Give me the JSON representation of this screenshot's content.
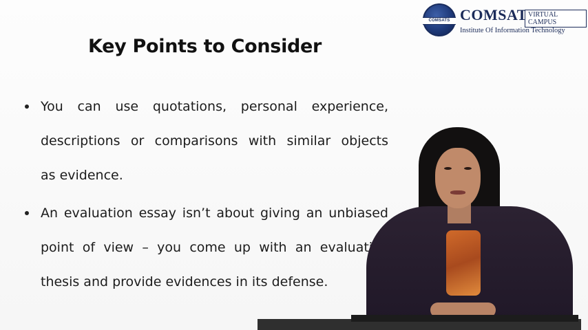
{
  "logo": {
    "seal_text": "COMSATS",
    "name": "COMSATS",
    "tag": "VIRTUAL CAMPUS",
    "subtitle": "Institute Of Information Technology"
  },
  "slide": {
    "title": "Key Points to Consider",
    "bullets": [
      {
        "lines": [
          "You can use quotations, personal experience,",
          "descriptions or comparisons with similar objects",
          "as evidence."
        ]
      },
      {
        "lines": [
          "An evaluation essay isn’t about giving an unbiased",
          "point of view – you come up with an evaluative",
          "thesis and provide evidences in its defense."
        ]
      }
    ]
  }
}
